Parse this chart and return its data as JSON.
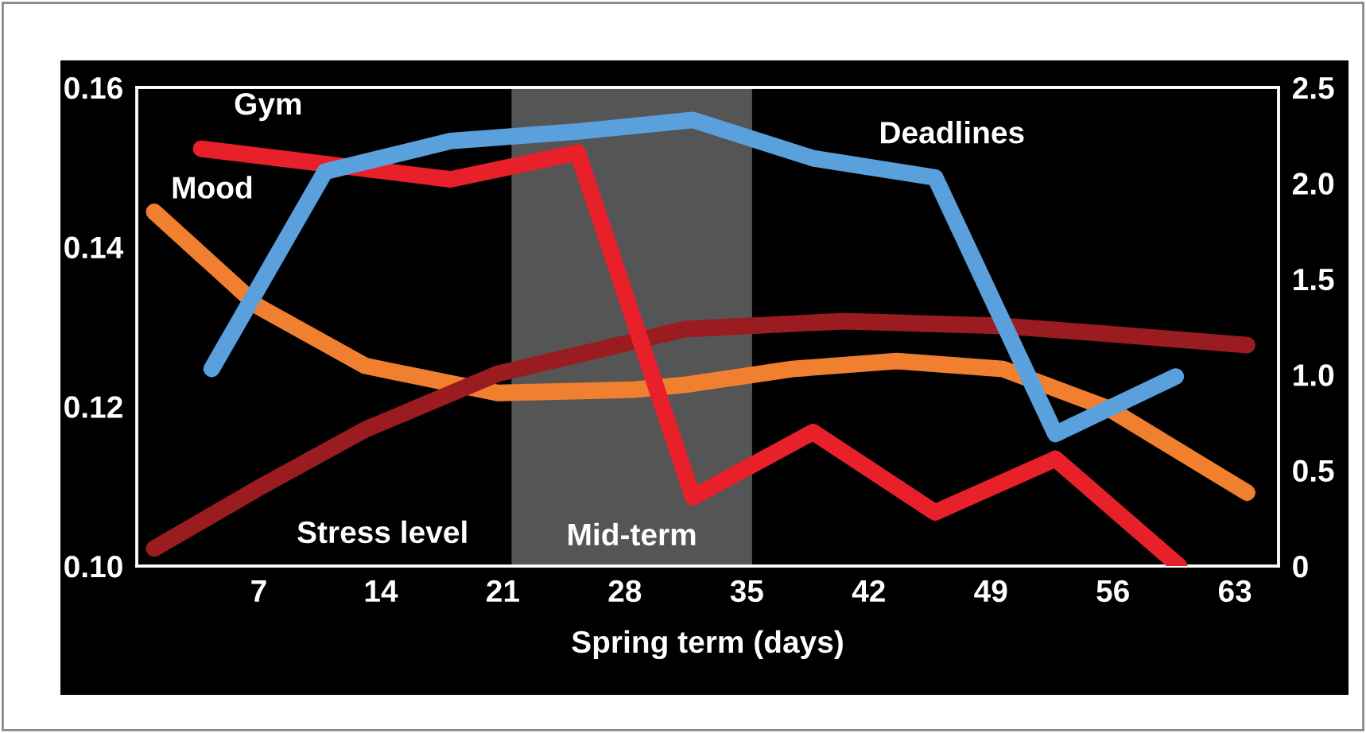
{
  "chart_data": {
    "type": "line",
    "xlabel": "Spring term (days)",
    "xlim": [
      0,
      65.5
    ],
    "xticks": [
      7,
      14,
      21,
      28,
      35,
      42,
      49,
      56,
      63
    ],
    "ylim": [
      0.1,
      0.16
    ],
    "yticks": [
      {
        "value": 0.1,
        "label": "0.10"
      },
      {
        "value": 0.12,
        "label": "0.12"
      },
      {
        "value": 0.14,
        "label": "0.14"
      },
      {
        "value": 0.16,
        "label": "0.16"
      }
    ],
    "y2lim": [
      0,
      2.5
    ],
    "y2ticks": [
      0,
      {
        "value": 0.5,
        "label": "0.5"
      },
      {
        "value": 1.0,
        "label": "1.0"
      },
      {
        "value": 1.5,
        "label": "1.5"
      },
      {
        "value": 2.0,
        "label": "2.0"
      },
      {
        "value": 2.5,
        "label": "2.5"
      }
    ],
    "grid": false,
    "legend": false,
    "marker": "none",
    "line_style": "solid",
    "bands": [
      {
        "axis": "x",
        "from": 21.5,
        "to": 35.3,
        "label": "Mid-term",
        "color": "#555555"
      }
    ],
    "series": [
      {
        "name": "Gym",
        "color": "#e8202a",
        "axis": "y2",
        "x": [
          3.7,
          18.0,
          25.3,
          31.9,
          38.8,
          45.8,
          52.7,
          59.8
        ],
        "values": [
          2.18,
          2.02,
          2.16,
          0.36,
          0.7,
          0.28,
          0.56,
          0
        ]
      },
      {
        "name": "Deadlines",
        "color": "#5aa0dc",
        "axis": "y2",
        "x": [
          4.3,
          10.8,
          18.0,
          25.3,
          31.9,
          38.8,
          45.8,
          52.7,
          59.6
        ],
        "values": [
          1.03,
          2.06,
          2.22,
          2.27,
          2.33,
          2.13,
          2.03,
          0.69,
          0.99
        ]
      },
      {
        "name": "Mood",
        "color": "#f08030",
        "x": [
          1.0,
          7.0,
          13.1,
          20.7,
          28.4,
          31.4,
          37.6,
          43.6,
          49.7,
          55.8,
          63.7
        ],
        "values": [
          0.1444,
          0.1325,
          0.1251,
          0.1217,
          0.1221,
          0.1227,
          0.1247,
          0.1257,
          0.1247,
          0.1197,
          0.1092
        ]
      },
      {
        "name": "Stress level",
        "color": "#9a1c20",
        "x": [
          1.0,
          7.0,
          13.1,
          20.7,
          28.4,
          31.4,
          40.6,
          49.7,
          55.8,
          63.7
        ],
        "values": [
          0.1022,
          0.1098,
          0.1171,
          0.1241,
          0.1281,
          0.1297,
          0.1307,
          0.1301,
          0.1291,
          0.1277
        ]
      }
    ]
  }
}
